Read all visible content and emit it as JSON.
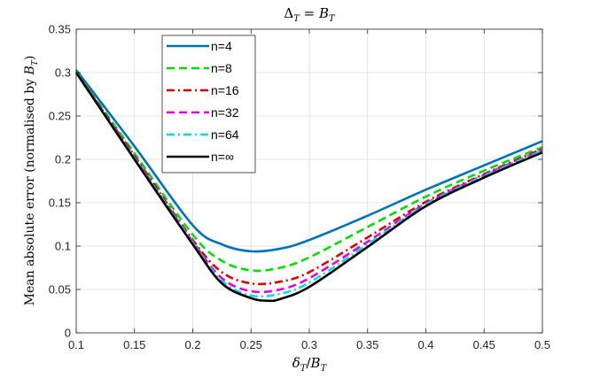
{
  "chart_data": {
    "type": "line",
    "title": "Δ_T = B_T",
    "xlabel": "δ_T / B_T",
    "ylabel": "Mean absolute error (normalised by B_T)",
    "xlim": [
      0.1,
      0.5
    ],
    "ylim": [
      0,
      0.35
    ],
    "xticks": [
      "0.1",
      "0.15",
      "0.2",
      "0.25",
      "0.3",
      "0.35",
      "0.4",
      "0.45",
      "0.5"
    ],
    "yticks": [
      "0",
      "0.05",
      "0.1",
      "0.15",
      "0.2",
      "0.25",
      "0.3",
      "0.35"
    ],
    "grid": true,
    "legend_position": "top-left",
    "series": [
      {
        "name": "n=4",
        "color": "#0072BD",
        "dash": "solid",
        "x": [
          0.1,
          0.15,
          0.2,
          0.225,
          0.25,
          0.275,
          0.3,
          0.35,
          0.4,
          0.45,
          0.5
        ],
        "y": [
          0.303,
          0.215,
          0.124,
          0.102,
          0.094,
          0.097,
          0.107,
          0.135,
          0.165,
          0.193,
          0.221
        ]
      },
      {
        "name": "n=8",
        "color": "#00E000",
        "dash": "dashed",
        "x": [
          0.1,
          0.15,
          0.2,
          0.225,
          0.25,
          0.275,
          0.3,
          0.35,
          0.4,
          0.45,
          0.5
        ],
        "y": [
          0.301,
          0.207,
          0.113,
          0.083,
          0.072,
          0.075,
          0.087,
          0.122,
          0.157,
          0.187,
          0.214
        ]
      },
      {
        "name": "n=16",
        "color": "#E00000",
        "dash": "dashdot",
        "x": [
          0.1,
          0.15,
          0.2,
          0.225,
          0.25,
          0.275,
          0.3,
          0.35,
          0.4,
          0.45,
          0.5
        ],
        "y": [
          0.3,
          0.204,
          0.107,
          0.07,
          0.057,
          0.059,
          0.07,
          0.11,
          0.151,
          0.183,
          0.212
        ]
      },
      {
        "name": "n=32",
        "color": "#E600E6",
        "dash": "dashed",
        "x": [
          0.1,
          0.15,
          0.2,
          0.225,
          0.25,
          0.275,
          0.3,
          0.35,
          0.4,
          0.45,
          0.5
        ],
        "y": [
          0.3,
          0.202,
          0.105,
          0.063,
          0.048,
          0.05,
          0.063,
          0.105,
          0.149,
          0.182,
          0.211
        ]
      },
      {
        "name": "n=64",
        "color": "#00DDEE",
        "dash": "dashdot",
        "x": [
          0.1,
          0.15,
          0.2,
          0.225,
          0.25,
          0.275,
          0.3,
          0.35,
          0.4,
          0.45,
          0.5
        ],
        "y": [
          0.3,
          0.201,
          0.104,
          0.06,
          0.043,
          0.045,
          0.058,
          0.102,
          0.148,
          0.181,
          0.21
        ]
      },
      {
        "name": "n=∞",
        "color": "#000000",
        "dash": "solid",
        "x": [
          0.1,
          0.15,
          0.2,
          0.225,
          0.25,
          0.265,
          0.275,
          0.3,
          0.35,
          0.4,
          0.45,
          0.5
        ],
        "y": [
          0.3,
          0.2,
          0.102,
          0.057,
          0.04,
          0.037,
          0.039,
          0.053,
          0.099,
          0.146,
          0.179,
          0.208
        ]
      }
    ]
  }
}
